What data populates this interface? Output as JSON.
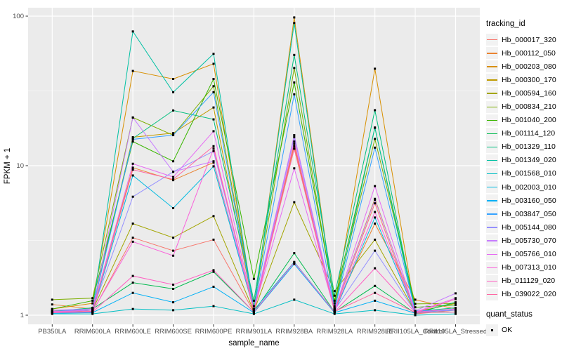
{
  "chart_data": {
    "type": "line",
    "title": "",
    "xlabel": "sample_name",
    "ylabel": "FPKM + 1",
    "y_scale": "log10",
    "ylim": [
      0.87,
      115
    ],
    "y_ticks": [
      1,
      10,
      100
    ],
    "y_minor_ticks": [
      3.162,
      31.62
    ],
    "grid": "major-and-minor-white-on-grey-panel",
    "panel_bg": "#EBEBEB",
    "grid_color": "#FFFFFF",
    "tick_color": "#333333",
    "axis_text_color": "#4D4D4D",
    "point_marker": "small-black-square",
    "legend_position": "right",
    "categories": [
      "PB350LA",
      "RRIM600LA",
      "RRIM600LE",
      "RRIM600SE",
      "RRIM600PE",
      "RRIM901LA",
      "RRIM928BA",
      "RRIM928LA",
      "RRIM928LE",
      "RRII105LA_Control",
      "RRII105LA_Stressed"
    ],
    "series": [
      {
        "name": "Hb_000017_320",
        "color": "#F8766D",
        "values": [
          1.08,
          1.05,
          3.3,
          2.7,
          3.2,
          1.05,
          13.5,
          1.08,
          5.6,
          1.02,
          1.08
        ]
      },
      {
        "name": "Hb_000112_050",
        "color": "#EA8331",
        "values": [
          1.18,
          1.1,
          9.7,
          8.0,
          10.5,
          1.1,
          14.0,
          1.1,
          4.1,
          1.27,
          1.1
        ]
      },
      {
        "name": "Hb_000203_080",
        "color": "#D89000",
        "values": [
          1.1,
          1.2,
          43,
          38,
          48,
          1.1,
          98,
          1.15,
          44.5,
          1.05,
          1.05
        ]
      },
      {
        "name": "Hb_000300_170",
        "color": "#C09B00",
        "values": [
          1.05,
          1.12,
          15.5,
          16.5,
          24.5,
          1.1,
          13.0,
          1.1,
          6.0,
          1.05,
          1.2
        ]
      },
      {
        "name": "Hb_000594_160",
        "color": "#A3A500",
        "values": [
          1.04,
          1.08,
          4.1,
          3.3,
          4.6,
          1.06,
          5.7,
          1.45,
          3.2,
          1.05,
          1.05
        ]
      },
      {
        "name": "Hb_000834_210",
        "color": "#7CAE00",
        "values": [
          1.27,
          1.3,
          21,
          16,
          34,
          1.15,
          45,
          1.2,
          15.1,
          1.19,
          1.2
        ]
      },
      {
        "name": "Hb_001040_200",
        "color": "#39B600",
        "values": [
          1.1,
          1.25,
          14.5,
          10.7,
          38,
          1.75,
          36,
          1.25,
          17.9,
          1.13,
          1.17
        ]
      },
      {
        "name": "Hb_001114_120",
        "color": "#00BB4E",
        "values": [
          1.05,
          1.1,
          1.65,
          1.5,
          1.95,
          1.05,
          2.6,
          1.05,
          1.57,
          1.03,
          1.22
        ]
      },
      {
        "name": "Hb_001329_110",
        "color": "#00BF7D",
        "values": [
          1.06,
          1.12,
          15.2,
          23.4,
          20.4,
          1.25,
          55,
          1.35,
          23.5,
          1.06,
          1.12
        ]
      },
      {
        "name": "Hb_001349_020",
        "color": "#00C1A3",
        "values": [
          1.05,
          1.08,
          79,
          31,
          56,
          1.1,
          90,
          1.12,
          18.0,
          1.05,
          1.08
        ]
      },
      {
        "name": "Hb_001568_010",
        "color": "#00BFC4",
        "values": [
          1.02,
          1.02,
          1.1,
          1.08,
          1.15,
          1.02,
          1.27,
          1.02,
          1.08,
          1.0,
          1.02
        ]
      },
      {
        "name": "Hb_002003_010",
        "color": "#00BAE0",
        "values": [
          1.05,
          1.05,
          8.6,
          5.2,
          9.9,
          1.08,
          2.27,
          1.05,
          4.5,
          1.04,
          1.05
        ]
      },
      {
        "name": "Hb_003160_050",
        "color": "#00B0F6",
        "values": [
          1.03,
          1.04,
          1.41,
          1.22,
          1.55,
          1.04,
          2.2,
          1.04,
          1.25,
          1.03,
          1.1
        ]
      },
      {
        "name": "Hb_003847_050",
        "color": "#35A2FF",
        "values": [
          1.06,
          1.1,
          15.0,
          16.0,
          31,
          1.1,
          30,
          1.1,
          13.2,
          1.07,
          1.08
        ]
      },
      {
        "name": "Hb_005144_080",
        "color": "#9590FF",
        "values": [
          1.05,
          1.08,
          6.2,
          9.1,
          12.5,
          1.08,
          15.5,
          1.08,
          2.7,
          1.05,
          1.08
        ]
      },
      {
        "name": "Hb_005730_070",
        "color": "#C77CFF",
        "values": [
          1.08,
          1.1,
          21,
          9.1,
          10.7,
          1.1,
          16.0,
          1.1,
          5.9,
          1.07,
          1.4
        ]
      },
      {
        "name": "Hb_005766_010",
        "color": "#E76BF3",
        "values": [
          1.06,
          1.08,
          10.3,
          8.4,
          17,
          1.08,
          9.6,
          1.08,
          7.3,
          1.05,
          1.3
        ]
      },
      {
        "name": "Hb_007313_010",
        "color": "#FA62DB",
        "values": [
          1.05,
          1.06,
          3.1,
          2.5,
          13.0,
          1.06,
          14.5,
          1.06,
          4.9,
          1.05,
          1.1
        ]
      },
      {
        "name": "Hb_011129_020",
        "color": "#FF61C3",
        "values": [
          1.04,
          1.05,
          1.83,
          1.6,
          2.0,
          1.05,
          2.25,
          1.05,
          2.06,
          1.04,
          1.28
        ]
      },
      {
        "name": "Hb_039022_020",
        "color": "#FF67A4",
        "values": [
          1.05,
          1.06,
          9.4,
          8.1,
          13.5,
          1.06,
          13.0,
          1.06,
          1.41,
          1.04,
          1.05
        ]
      }
    ]
  },
  "legend": {
    "tracking_title": "tracking_id",
    "quant_title": "quant_status",
    "quant_items": [
      "OK"
    ]
  },
  "axes": {
    "x_title": "sample_name",
    "y_title": "FPKM + 1",
    "y_tick_labels": [
      "1",
      "10",
      "100"
    ]
  }
}
